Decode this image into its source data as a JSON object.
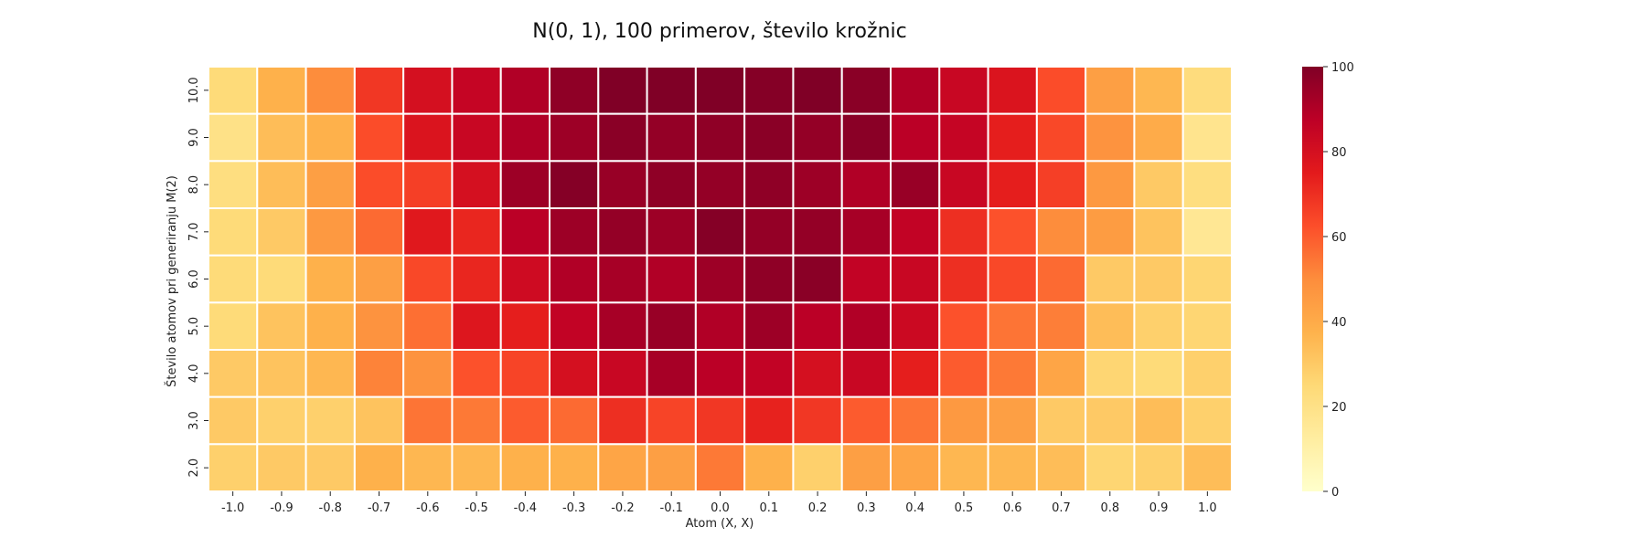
{
  "chart_data": {
    "type": "heatmap",
    "title": "N(0, 1), 100 primerov, število krožnic",
    "xlabel": "Atom (X, X)",
    "ylabel": "Število atomov pri generiranju M(2)",
    "x": [
      "-1.0",
      "-0.9",
      "-0.8",
      "-0.7",
      "-0.6",
      "-0.5",
      "-0.4",
      "-0.3",
      "-0.2",
      "-0.1",
      "0.0",
      "0.1",
      "0.2",
      "0.3",
      "0.4",
      "0.5",
      "0.6",
      "0.7",
      "0.8",
      "0.9",
      "1.0"
    ],
    "y": [
      "10.0",
      "9.0",
      "8.0",
      "7.0",
      "6.0",
      "5.0",
      "4.0",
      "3.0",
      "2.0"
    ],
    "values": [
      [
        24,
        38,
        50,
        68,
        80,
        85,
        90,
        97,
        100,
        100,
        100,
        99,
        100,
        98,
        90,
        84,
        78,
        63,
        44,
        36,
        23
      ],
      [
        20,
        34,
        38,
        63,
        78,
        84,
        90,
        94,
        98,
        96,
        97,
        98,
        96,
        98,
        88,
        85,
        74,
        64,
        48,
        40,
        18
      ],
      [
        22,
        34,
        44,
        63,
        66,
        80,
        94,
        99,
        95,
        97,
        96,
        97,
        94,
        90,
        95,
        84,
        74,
        66,
        46,
        30,
        22
      ],
      [
        24,
        30,
        46,
        57,
        76,
        72,
        88,
        94,
        96,
        94,
        99,
        96,
        96,
        92,
        86,
        70,
        62,
        50,
        45,
        32,
        16
      ],
      [
        24,
        24,
        38,
        44,
        64,
        72,
        82,
        90,
        92,
        90,
        94,
        97,
        98,
        86,
        84,
        70,
        64,
        57,
        30,
        30,
        26
      ],
      [
        24,
        32,
        38,
        48,
        56,
        77,
        74,
        86,
        92,
        95,
        90,
        94,
        88,
        90,
        83,
        62,
        55,
        53,
        34,
        28,
        26
      ],
      [
        30,
        32,
        36,
        52,
        48,
        62,
        65,
        80,
        84,
        92,
        88,
        86,
        80,
        84,
        74,
        60,
        54,
        42,
        26,
        24,
        28
      ],
      [
        30,
        28,
        28,
        32,
        55,
        54,
        60,
        57,
        70,
        65,
        68,
        73,
        68,
        60,
        55,
        46,
        44,
        30,
        30,
        34,
        28
      ],
      [
        28,
        30,
        30,
        38,
        36,
        36,
        38,
        38,
        42,
        44,
        54,
        38,
        28,
        44,
        42,
        36,
        36,
        34,
        26,
        28,
        34
      ]
    ],
    "vmin": 0,
    "vmax": 100,
    "colormap": "YlOrRd",
    "colorbar_ticks": [
      "0",
      "20",
      "40",
      "60",
      "80",
      "100"
    ],
    "grid": "white cell borders",
    "legend": "colorbar right"
  }
}
